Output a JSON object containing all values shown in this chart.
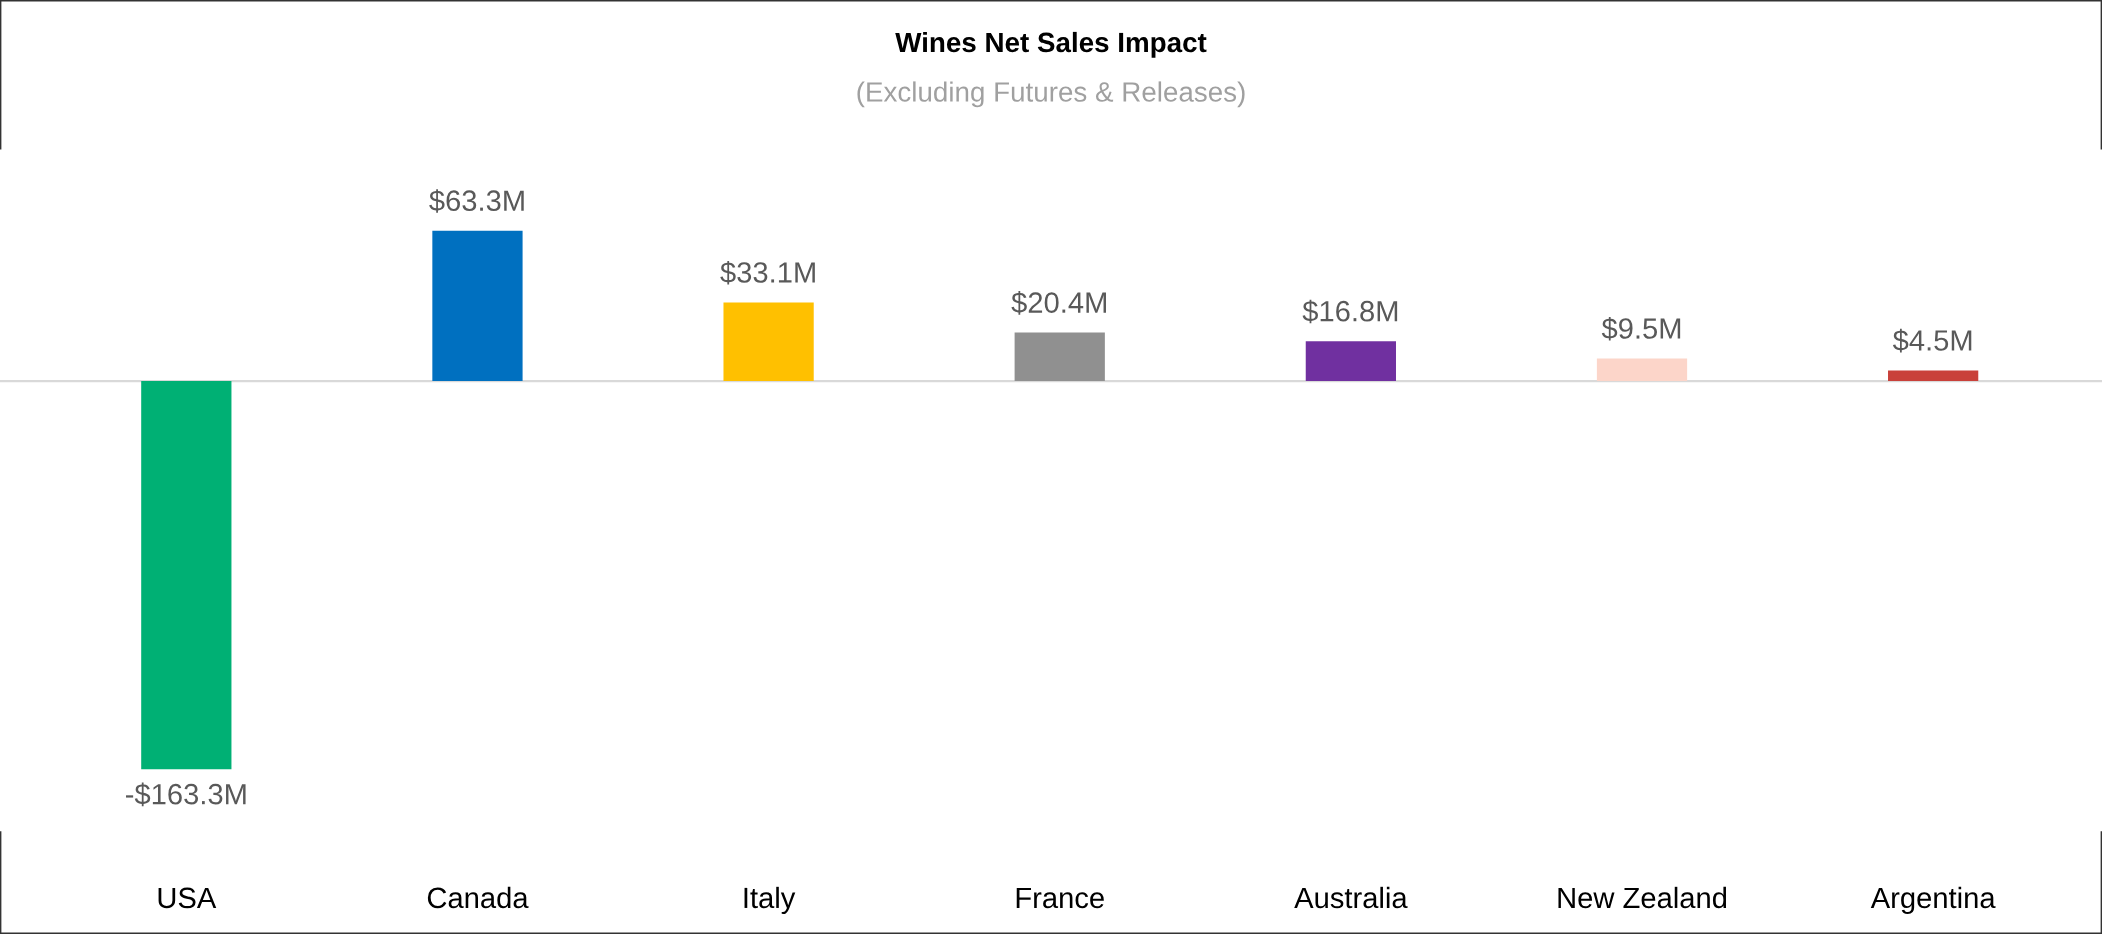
{
  "chart_data": {
    "type": "bar",
    "title": "Wines Net Sales Impact",
    "subtitle": "(Excluding Futures & Releases)",
    "categories": [
      "USA",
      "Canada",
      "Italy",
      "France",
      "Australia",
      "New Zealand",
      "Argentina"
    ],
    "values": [
      -163.3,
      63.3,
      33.1,
      20.4,
      16.8,
      9.5,
      4.5
    ],
    "colors": [
      "#00b074",
      "#0070c0",
      "#ffc000",
      "#909090",
      "#7030a0",
      "#fcd5c9",
      "#c9413a"
    ],
    "value_labels": [
      "-$163.3M",
      "$63.3M",
      "$33.1M",
      "$20.4M",
      "$16.8M",
      "$9.5M",
      "$4.5M"
    ],
    "grid": false,
    "legend": false
  }
}
